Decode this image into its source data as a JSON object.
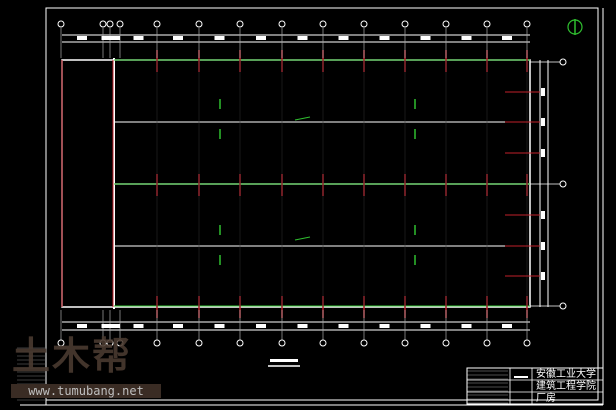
{
  "title_block": {
    "school": "安徽工业大学",
    "department": "建筑工程学院",
    "project": "厂房"
  },
  "watermark": {
    "logo": "土木帮",
    "url": "www.tumubang.net"
  },
  "icons": {
    "north_arrow": "north-arrow-icon"
  },
  "colors": {
    "background": "#000000",
    "lines": "#ffffff",
    "columns": "#c0202a",
    "purlins": "#2fbf2f",
    "north": "#2fbf2f"
  }
}
